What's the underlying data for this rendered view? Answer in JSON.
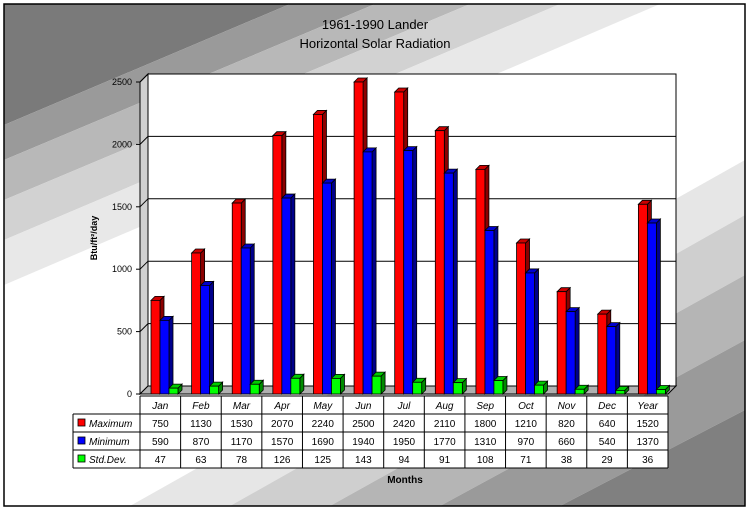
{
  "chart_data": {
    "type": "bar",
    "title": "1961-1990 Lander",
    "subtitle": "Horizontal Solar Radiation",
    "xlabel": "Months",
    "ylabel": "Btu/ft²/day",
    "ylim": [
      0,
      2500
    ],
    "yticks": [
      0,
      500,
      1000,
      1500,
      2000,
      2500
    ],
    "grid": true,
    "legend": "data-table rows",
    "categories": [
      "Jan",
      "Feb",
      "Mar",
      "Apr",
      "May",
      "Jun",
      "Jul",
      "Aug",
      "Sep",
      "Oct",
      "Nov",
      "Dec",
      "Year"
    ],
    "series": [
      {
        "name": "Maximum",
        "color": "#ff0000",
        "values": [
          750,
          1130,
          1530,
          2070,
          2240,
          2500,
          2420,
          2110,
          1800,
          1210,
          820,
          640,
          1520
        ]
      },
      {
        "name": "Minimum",
        "color": "#0000ff",
        "values": [
          590,
          870,
          1170,
          1570,
          1690,
          1940,
          1950,
          1770,
          1310,
          970,
          660,
          540,
          1370
        ]
      },
      {
        "name": "Std.Dev.",
        "color": "#00ff00",
        "values": [
          47,
          63,
          78,
          126,
          125,
          143,
          94,
          91,
          108,
          71,
          38,
          29,
          36
        ]
      }
    ]
  }
}
